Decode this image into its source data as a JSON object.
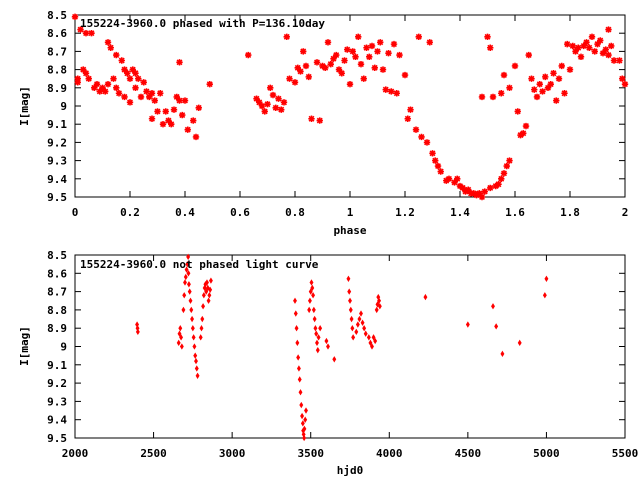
{
  "chart_data": [
    {
      "type": "scatter",
      "title": "155224-3960.0 phased with P=136.10day",
      "xlabel": "phase",
      "ylabel": "I[mag]",
      "xlim": [
        0,
        2
      ],
      "ylim": [
        8.5,
        9.5
      ],
      "y_inverted": true,
      "xticks": [
        0,
        0.2,
        0.4,
        0.6,
        0.8,
        1,
        1.2,
        1.4,
        1.6,
        1.8,
        2
      ],
      "xtick_labels": [
        "0",
        "0.2",
        "0.4",
        "0.6",
        "0.8",
        "1",
        "1.2",
        "1.4",
        "1.6",
        "1.8",
        "2"
      ],
      "yticks": [
        8.5,
        8.6,
        8.7,
        8.8,
        8.9,
        9,
        9.1,
        9.2,
        9.3,
        9.4,
        9.5
      ],
      "ytick_labels": [
        "8.5",
        "8.6",
        "8.7",
        "8.8",
        "8.9",
        "9",
        "9.1",
        "9.2",
        "9.3",
        "9.4",
        "9.5"
      ],
      "marker": "star",
      "color": "#ff0000",
      "points": [
        [
          0.0,
          8.51
        ],
        [
          0.01,
          8.85
        ],
        [
          0.01,
          8.87
        ],
        [
          0.02,
          8.58
        ],
        [
          0.03,
          8.8
        ],
        [
          0.04,
          8.6
        ],
        [
          0.04,
          8.82
        ],
        [
          0.05,
          8.85
        ],
        [
          0.06,
          8.6
        ],
        [
          0.07,
          8.9
        ],
        [
          0.08,
          8.88
        ],
        [
          0.09,
          8.92
        ],
        [
          0.1,
          8.9
        ],
        [
          0.11,
          8.92
        ],
        [
          0.12,
          8.88
        ],
        [
          0.12,
          8.65
        ],
        [
          0.13,
          8.68
        ],
        [
          0.14,
          8.85
        ],
        [
          0.15,
          8.72
        ],
        [
          0.15,
          8.9
        ],
        [
          0.16,
          8.93
        ],
        [
          0.17,
          8.75
        ],
        [
          0.18,
          8.8
        ],
        [
          0.18,
          8.95
        ],
        [
          0.19,
          8.82
        ],
        [
          0.2,
          8.85
        ],
        [
          0.2,
          8.98
        ],
        [
          0.21,
          8.8
        ],
        [
          0.22,
          8.9
        ],
        [
          0.22,
          8.82
        ],
        [
          0.23,
          8.85
        ],
        [
          0.24,
          8.95
        ],
        [
          0.25,
          8.87
        ],
        [
          0.26,
          8.92
        ],
        [
          0.27,
          8.95
        ],
        [
          0.28,
          8.93
        ],
        [
          0.28,
          9.07
        ],
        [
          0.29,
          8.97
        ],
        [
          0.3,
          9.03
        ],
        [
          0.31,
          8.93
        ],
        [
          0.32,
          9.1
        ],
        [
          0.33,
          9.03
        ],
        [
          0.34,
          9.08
        ],
        [
          0.35,
          9.1
        ],
        [
          0.36,
          9.02
        ],
        [
          0.37,
          8.95
        ],
        [
          0.38,
          8.97
        ],
        [
          0.38,
          8.76
        ],
        [
          0.39,
          9.05
        ],
        [
          0.4,
          8.97
        ],
        [
          0.41,
          9.13
        ],
        [
          0.43,
          9.08
        ],
        [
          0.44,
          9.17
        ],
        [
          0.45,
          9.01
        ],
        [
          0.49,
          8.88
        ],
        [
          0.63,
          8.72
        ],
        [
          0.66,
          8.96
        ],
        [
          0.67,
          8.98
        ],
        [
          0.68,
          9.0
        ],
        [
          0.69,
          9.03
        ],
        [
          0.7,
          8.99
        ],
        [
          0.71,
          8.9
        ],
        [
          0.72,
          8.94
        ],
        [
          0.73,
          9.01
        ],
        [
          0.74,
          8.96
        ],
        [
          0.75,
          9.02
        ],
        [
          0.76,
          8.98
        ],
        [
          0.77,
          8.62
        ],
        [
          0.78,
          8.85
        ],
        [
          0.8,
          8.87
        ],
        [
          0.81,
          8.79
        ],
        [
          0.82,
          8.81
        ],
        [
          0.83,
          8.7
        ],
        [
          0.84,
          8.78
        ],
        [
          0.85,
          8.84
        ],
        [
          0.86,
          9.07
        ],
        [
          0.88,
          8.76
        ],
        [
          0.89,
          9.08
        ],
        [
          0.9,
          8.78
        ],
        [
          0.91,
          8.79
        ],
        [
          0.92,
          8.65
        ],
        [
          0.93,
          8.77
        ],
        [
          0.94,
          8.74
        ],
        [
          0.95,
          8.72
        ],
        [
          0.96,
          8.8
        ],
        [
          0.97,
          8.82
        ],
        [
          0.98,
          8.75
        ],
        [
          0.99,
          8.69
        ],
        [
          1.0,
          8.88
        ],
        [
          1.01,
          8.7
        ],
        [
          1.02,
          8.73
        ],
        [
          1.03,
          8.62
        ],
        [
          1.04,
          8.77
        ],
        [
          1.05,
          8.85
        ],
        [
          1.06,
          8.68
        ],
        [
          1.07,
          8.73
        ],
        [
          1.08,
          8.67
        ],
        [
          1.09,
          8.79
        ],
        [
          1.1,
          8.7
        ],
        [
          1.11,
          8.65
        ],
        [
          1.12,
          8.8
        ],
        [
          1.13,
          8.91
        ],
        [
          1.14,
          8.71
        ],
        [
          1.15,
          8.92
        ],
        [
          1.16,
          8.66
        ],
        [
          1.17,
          8.93
        ],
        [
          1.18,
          8.72
        ],
        [
          1.2,
          8.83
        ],
        [
          1.21,
          9.07
        ],
        [
          1.22,
          9.02
        ],
        [
          1.24,
          9.13
        ],
        [
          1.25,
          8.62
        ],
        [
          1.26,
          9.17
        ],
        [
          1.28,
          9.2
        ],
        [
          1.29,
          8.65
        ],
        [
          1.3,
          9.26
        ],
        [
          1.31,
          9.3
        ],
        [
          1.32,
          9.33
        ],
        [
          1.33,
          9.36
        ],
        [
          1.35,
          9.41
        ],
        [
          1.36,
          9.4
        ],
        [
          1.38,
          9.42
        ],
        [
          1.39,
          9.4
        ],
        [
          1.4,
          9.44
        ],
        [
          1.41,
          9.45
        ],
        [
          1.42,
          9.47
        ],
        [
          1.43,
          9.46
        ],
        [
          1.44,
          9.48
        ],
        [
          1.45,
          9.48
        ],
        [
          1.46,
          9.49
        ],
        [
          1.47,
          9.48
        ],
        [
          1.48,
          9.5
        ],
        [
          1.49,
          9.47
        ],
        [
          1.48,
          8.95
        ],
        [
          1.5,
          8.62
        ],
        [
          1.51,
          9.45
        ],
        [
          1.51,
          8.68
        ],
        [
          1.53,
          9.44
        ],
        [
          1.54,
          9.43
        ],
        [
          1.55,
          9.4
        ],
        [
          1.56,
          9.37
        ],
        [
          1.57,
          9.33
        ],
        [
          1.58,
          9.3
        ],
        [
          1.52,
          8.95
        ],
        [
          1.55,
          8.93
        ],
        [
          1.56,
          8.83
        ],
        [
          1.58,
          8.9
        ],
        [
          1.6,
          8.78
        ],
        [
          1.61,
          9.03
        ],
        [
          1.62,
          9.16
        ],
        [
          1.63,
          9.15
        ],
        [
          1.64,
          9.11
        ],
        [
          1.65,
          8.72
        ],
        [
          1.66,
          8.85
        ],
        [
          1.67,
          8.91
        ],
        [
          1.68,
          8.95
        ],
        [
          1.69,
          8.88
        ],
        [
          1.7,
          8.92
        ],
        [
          1.71,
          8.84
        ],
        [
          1.72,
          8.9
        ],
        [
          1.73,
          8.88
        ],
        [
          1.74,
          8.82
        ],
        [
          1.75,
          8.97
        ],
        [
          1.76,
          8.85
        ],
        [
          1.77,
          8.78
        ],
        [
          1.78,
          8.93
        ],
        [
          1.79,
          8.66
        ],
        [
          1.8,
          8.8
        ],
        [
          1.81,
          8.67
        ],
        [
          1.82,
          8.7
        ],
        [
          1.83,
          8.68
        ],
        [
          1.84,
          8.73
        ],
        [
          1.85,
          8.67
        ],
        [
          1.86,
          8.65
        ],
        [
          1.87,
          8.68
        ],
        [
          1.88,
          8.62
        ],
        [
          1.89,
          8.7
        ],
        [
          1.9,
          8.66
        ],
        [
          1.91,
          8.64
        ],
        [
          1.92,
          8.71
        ],
        [
          1.93,
          8.69
        ],
        [
          1.94,
          8.72
        ],
        [
          1.94,
          8.58
        ],
        [
          1.95,
          8.67
        ],
        [
          1.96,
          8.75
        ],
        [
          1.98,
          8.75
        ],
        [
          1.99,
          8.85
        ],
        [
          2.0,
          8.88
        ]
      ]
    },
    {
      "type": "scatter",
      "title": "155224-3960.0 not phased light curve",
      "xlabel": "hjd0",
      "ylabel": "I[mag]",
      "xlim": [
        2000,
        5500
      ],
      "ylim": [
        8.5,
        9.5
      ],
      "y_inverted": true,
      "xticks": [
        2000,
        2500,
        3000,
        3500,
        4000,
        4500,
        5000,
        5500
      ],
      "xtick_labels": [
        "2000",
        "2500",
        "3000",
        "3500",
        "4000",
        "4500",
        "5000",
        "5500"
      ],
      "yticks": [
        8.5,
        8.6,
        8.7,
        8.8,
        8.9,
        9,
        9.1,
        9.2,
        9.3,
        9.4,
        9.5
      ],
      "ytick_labels": [
        "8.5",
        "8.6",
        "8.7",
        "8.8",
        "8.9",
        "9",
        "9.1",
        "9.2",
        "9.3",
        "9.4",
        "9.5"
      ],
      "marker": "diamond",
      "color": "#ff0000",
      "points": [
        [
          2395,
          8.88
        ],
        [
          2398,
          8.9
        ],
        [
          2400,
          8.92
        ],
        [
          2660,
          8.98
        ],
        [
          2665,
          8.93
        ],
        [
          2670,
          8.9
        ],
        [
          2675,
          8.95
        ],
        [
          2680,
          9.0
        ],
        [
          2690,
          8.8
        ],
        [
          2695,
          8.72
        ],
        [
          2700,
          8.65
        ],
        [
          2705,
          8.62
        ],
        [
          2710,
          8.58
        ],
        [
          2715,
          8.55
        ],
        [
          2720,
          8.51
        ],
        [
          2722,
          8.6
        ],
        [
          2725,
          8.66
        ],
        [
          2730,
          8.7
        ],
        [
          2735,
          8.75
        ],
        [
          2740,
          8.8
        ],
        [
          2745,
          8.85
        ],
        [
          2750,
          8.9
        ],
        [
          2755,
          8.95
        ],
        [
          2760,
          9.0
        ],
        [
          2765,
          9.05
        ],
        [
          2770,
          9.08
        ],
        [
          2775,
          9.12
        ],
        [
          2780,
          9.16
        ],
        [
          2800,
          8.95
        ],
        [
          2805,
          8.9
        ],
        [
          2810,
          8.85
        ],
        [
          2815,
          8.78
        ],
        [
          2820,
          8.72
        ],
        [
          2825,
          8.68
        ],
        [
          2830,
          8.66
        ],
        [
          2835,
          8.7
        ],
        [
          2840,
          8.65
        ],
        [
          2845,
          8.68
        ],
        [
          2850,
          8.75
        ],
        [
          2855,
          8.72
        ],
        [
          2860,
          8.69
        ],
        [
          2865,
          8.64
        ],
        [
          3400,
          8.75
        ],
        [
          3405,
          8.82
        ],
        [
          3410,
          8.9
        ],
        [
          3415,
          8.98
        ],
        [
          3420,
          9.06
        ],
        [
          3425,
          9.12
        ],
        [
          3430,
          9.18
        ],
        [
          3435,
          9.25
        ],
        [
          3440,
          9.32
        ],
        [
          3445,
          9.38
        ],
        [
          3450,
          9.42
        ],
        [
          3452,
          9.46
        ],
        [
          3455,
          9.48
        ],
        [
          3458,
          9.5
        ],
        [
          3460,
          9.45
        ],
        [
          3465,
          9.4
        ],
        [
          3470,
          9.35
        ],
        [
          3490,
          8.8
        ],
        [
          3495,
          8.75
        ],
        [
          3500,
          8.7
        ],
        [
          3505,
          8.65
        ],
        [
          3510,
          8.68
        ],
        [
          3515,
          8.72
        ],
        [
          3520,
          8.8
        ],
        [
          3525,
          8.85
        ],
        [
          3530,
          8.9
        ],
        [
          3535,
          8.93
        ],
        [
          3540,
          8.98
        ],
        [
          3545,
          9.02
        ],
        [
          3550,
          8.95
        ],
        [
          3560,
          8.9
        ],
        [
          3600,
          8.97
        ],
        [
          3610,
          9.0
        ],
        [
          3650,
          9.07
        ],
        [
          3740,
          8.63
        ],
        [
          3745,
          8.7
        ],
        [
          3750,
          8.75
        ],
        [
          3755,
          8.8
        ],
        [
          3760,
          8.85
        ],
        [
          3765,
          8.9
        ],
        [
          3770,
          8.95
        ],
        [
          3790,
          8.92
        ],
        [
          3800,
          8.88
        ],
        [
          3810,
          8.85
        ],
        [
          3820,
          8.82
        ],
        [
          3830,
          8.87
        ],
        [
          3840,
          8.9
        ],
        [
          3850,
          8.93
        ],
        [
          3870,
          8.95
        ],
        [
          3880,
          8.98
        ],
        [
          3890,
          9.0
        ],
        [
          3900,
          8.95
        ],
        [
          3910,
          8.97
        ],
        [
          3920,
          8.8
        ],
        [
          3925,
          8.77
        ],
        [
          3930,
          8.73
        ],
        [
          3935,
          8.75
        ],
        [
          3940,
          8.78
        ],
        [
          4230,
          8.73
        ],
        [
          4500,
          8.88
        ],
        [
          4660,
          8.78
        ],
        [
          4680,
          8.89
        ],
        [
          4720,
          9.04
        ],
        [
          4830,
          8.98
        ],
        [
          4990,
          8.72
        ],
        [
          5000,
          8.63
        ]
      ]
    }
  ]
}
